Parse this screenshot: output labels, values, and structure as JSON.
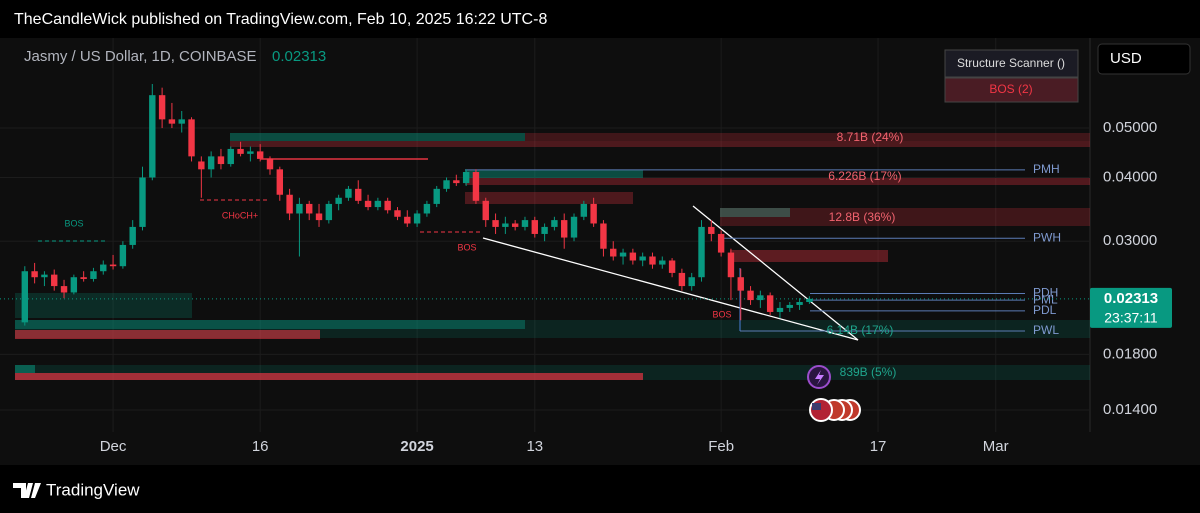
{
  "header": {
    "published": "TheCandleWick published on TradingView.com, Feb 10, 2025 16:22 UTC-8",
    "brand": "TradingView"
  },
  "chart_data": {
    "type": "candlestick",
    "title": "Jasmy / US Dollar, 1D, COINBASE",
    "last_price": 0.02313,
    "currency": "USD",
    "countdown": "23:37:11",
    "scanner": {
      "title": "Structure Scanner ()",
      "status": "BOS (2)"
    },
    "log_scale": true,
    "grid": true,
    "up_color": "#089981",
    "down_color": "#f23645",
    "xlim": [
      "2024-11-21",
      "2025-03-10"
    ],
    "xticks": [
      {
        "value": "2024-12-01",
        "label": "Dec"
      },
      {
        "value": "2024-12-16",
        "label": "16"
      },
      {
        "value": "2025-01-01",
        "label": "2025"
      },
      {
        "value": "2025-01-13",
        "label": "13"
      },
      {
        "value": "2025-02-01",
        "label": "Feb"
      },
      {
        "value": "2025-02-17",
        "label": "17"
      },
      {
        "value": "2025-03-01",
        "label": "Mar"
      }
    ],
    "ylim": [
      0.01268,
      0.0744
    ],
    "yticks": [
      {
        "value": 0.05,
        "label": "0.05000"
      },
      {
        "value": 0.04,
        "label": "0.04000"
      },
      {
        "value": 0.03,
        "label": "0.03000"
      },
      {
        "value": 0.018,
        "label": "0.01800"
      },
      {
        "value": 0.014,
        "label": "0.01400"
      }
    ],
    "levels": [
      {
        "label": "PMH",
        "value": 0.0414
      },
      {
        "label": "PWH",
        "value": 0.0304
      },
      {
        "label": "PDH",
        "value": 0.0237
      },
      {
        "label": "PML",
        "value": 0.023
      },
      {
        "label": "PDL",
        "value": 0.0219
      },
      {
        "label": "PWL",
        "value": 0.02
      }
    ],
    "annotations": [
      "BOS",
      "CHoCH+",
      "BOS",
      "BOS"
    ],
    "zone_labels": [
      "8.71B (24%)",
      "6.226B (17%)",
      "12.8B (36%)",
      "6.14B (17%)",
      "839B (5%)"
    ],
    "x": [
      "2024-11-22",
      "2024-11-23",
      "2024-11-24",
      "2024-11-25",
      "2024-11-26",
      "2024-11-27",
      "2024-11-28",
      "2024-11-29",
      "2024-11-30",
      "2024-12-01",
      "2024-12-02",
      "2024-12-03",
      "2024-12-04",
      "2024-12-05",
      "2024-12-06",
      "2024-12-07",
      "2024-12-08",
      "2024-12-09",
      "2024-12-10",
      "2024-12-11",
      "2024-12-12",
      "2024-12-13",
      "2024-12-14",
      "2024-12-15",
      "2024-12-16",
      "2024-12-17",
      "2024-12-18",
      "2024-12-19",
      "2024-12-20",
      "2024-12-21",
      "2024-12-22",
      "2024-12-23",
      "2024-12-24",
      "2024-12-25",
      "2024-12-26",
      "2024-12-27",
      "2024-12-28",
      "2024-12-29",
      "2024-12-30",
      "2024-12-31",
      "2025-01-01",
      "2025-01-02",
      "2025-01-03",
      "2025-01-04",
      "2025-01-05",
      "2025-01-06",
      "2025-01-07",
      "2025-01-08",
      "2025-01-09",
      "2025-01-10",
      "2025-01-11",
      "2025-01-12",
      "2025-01-13",
      "2025-01-14",
      "2025-01-15",
      "2025-01-16",
      "2025-01-17",
      "2025-01-18",
      "2025-01-19",
      "2025-01-20",
      "2025-01-21",
      "2025-01-22",
      "2025-01-23",
      "2025-01-24",
      "2025-01-25",
      "2025-01-26",
      "2025-01-27",
      "2025-01-28",
      "2025-01-29",
      "2025-01-30",
      "2025-01-31",
      "2025-02-01",
      "2025-02-02",
      "2025-02-03",
      "2025-02-04",
      "2025-02-05",
      "2025-02-06",
      "2025-02-07",
      "2025-02-08",
      "2025-02-09",
      "2025-02-10"
    ],
    "open": [
      0.0208,
      0.0262,
      0.0255,
      0.0258,
      0.0245,
      0.0238,
      0.0255,
      0.0253,
      0.0262,
      0.027,
      0.0268,
      0.0295,
      0.032,
      0.04,
      0.058,
      0.052,
      0.051,
      0.052,
      0.043,
      0.0415,
      0.044,
      0.0425,
      0.0455,
      0.0445,
      0.045,
      0.0435,
      0.0415,
      0.037,
      0.034,
      0.0355,
      0.034,
      0.033,
      0.0355,
      0.0365,
      0.038,
      0.036,
      0.035,
      0.036,
      0.0345,
      0.0335,
      0.0325,
      0.034,
      0.0355,
      0.038,
      0.0395,
      0.039,
      0.041,
      0.036,
      0.033,
      0.032,
      0.0325,
      0.032,
      0.033,
      0.031,
      0.032,
      0.033,
      0.0305,
      0.0335,
      0.0355,
      0.0325,
      0.029,
      0.028,
      0.0285,
      0.0275,
      0.028,
      0.027,
      0.0275,
      0.026,
      0.0245,
      0.0255,
      0.032,
      0.031,
      0.0285,
      0.0255,
      0.024,
      0.023,
      0.0235,
      0.0218,
      0.0222,
      0.0225,
      0.0228
    ],
    "high": [
      0.0268,
      0.0272,
      0.0262,
      0.0264,
      0.0252,
      0.0258,
      0.0262,
      0.0266,
      0.0275,
      0.0282,
      0.03,
      0.033,
      0.042,
      0.061,
      0.06,
      0.056,
      0.054,
      0.0525,
      0.044,
      0.045,
      0.0455,
      0.046,
      0.047,
      0.046,
      0.0465,
      0.044,
      0.042,
      0.038,
      0.0365,
      0.036,
      0.0355,
      0.036,
      0.037,
      0.0385,
      0.0395,
      0.037,
      0.0365,
      0.0365,
      0.035,
      0.0345,
      0.0345,
      0.036,
      0.0385,
      0.04,
      0.0405,
      0.0415,
      0.0415,
      0.0365,
      0.034,
      0.0335,
      0.033,
      0.0335,
      0.0335,
      0.0325,
      0.0335,
      0.034,
      0.034,
      0.036,
      0.0365,
      0.033,
      0.03,
      0.029,
      0.029,
      0.0285,
      0.0285,
      0.028,
      0.0278,
      0.0265,
      0.026,
      0.033,
      0.033,
      0.0315,
      0.029,
      0.0265,
      0.0245,
      0.024,
      0.0238,
      0.0228,
      0.0228,
      0.0232,
      0.0234
    ],
    "low": [
      0.0205,
      0.0248,
      0.0245,
      0.024,
      0.0232,
      0.0236,
      0.025,
      0.025,
      0.0258,
      0.0264,
      0.0265,
      0.029,
      0.0315,
      0.0395,
      0.05,
      0.05,
      0.049,
      0.043,
      0.0365,
      0.04,
      0.0415,
      0.042,
      0.044,
      0.043,
      0.043,
      0.0405,
      0.036,
      0.033,
      0.028,
      0.033,
      0.032,
      0.0325,
      0.0345,
      0.036,
      0.0355,
      0.0345,
      0.0345,
      0.034,
      0.033,
      0.032,
      0.032,
      0.0335,
      0.035,
      0.0375,
      0.0385,
      0.0385,
      0.0355,
      0.032,
      0.031,
      0.031,
      0.0315,
      0.0315,
      0.0305,
      0.03,
      0.0315,
      0.029,
      0.03,
      0.033,
      0.032,
      0.028,
      0.0275,
      0.027,
      0.027,
      0.0268,
      0.0265,
      0.0265,
      0.0255,
      0.024,
      0.024,
      0.025,
      0.03,
      0.028,
      0.023,
      0.021,
      0.0225,
      0.0222,
      0.0215,
      0.0212,
      0.0218,
      0.022,
      0.0226
    ],
    "close": [
      0.0262,
      0.0255,
      0.0258,
      0.0245,
      0.0238,
      0.0255,
      0.0253,
      0.0262,
      0.027,
      0.0268,
      0.0295,
      0.032,
      0.04,
      0.058,
      0.052,
      0.051,
      0.052,
      0.044,
      0.0415,
      0.044,
      0.0425,
      0.0455,
      0.0445,
      0.045,
      0.0435,
      0.0415,
      0.037,
      0.034,
      0.0355,
      0.034,
      0.033,
      0.0355,
      0.0365,
      0.038,
      0.036,
      0.035,
      0.036,
      0.0345,
      0.0335,
      0.0325,
      0.034,
      0.0355,
      0.038,
      0.0395,
      0.039,
      0.041,
      0.036,
      0.033,
      0.032,
      0.0325,
      0.032,
      0.033,
      0.031,
      0.032,
      0.033,
      0.0305,
      0.0335,
      0.0355,
      0.0325,
      0.029,
      0.028,
      0.0285,
      0.0275,
      0.028,
      0.027,
      0.0275,
      0.026,
      0.0245,
      0.0255,
      0.032,
      0.031,
      0.0285,
      0.0255,
      0.024,
      0.023,
      0.0235,
      0.0218,
      0.0222,
      0.0225,
      0.0228,
      0.02313
    ]
  }
}
